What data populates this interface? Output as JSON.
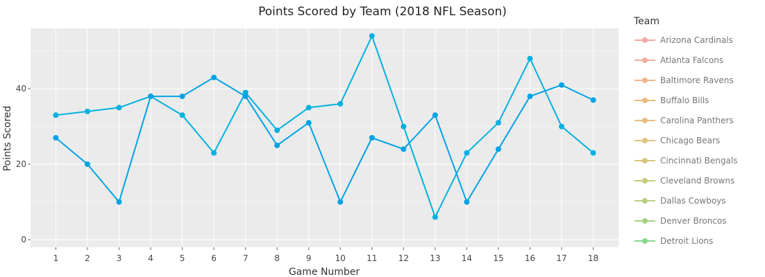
{
  "chart_data": {
    "type": "line",
    "title": "Points Scored by Team (2018 NFL Season)",
    "xlabel": "Game Number",
    "ylabel": "Points Scored",
    "x": [
      1,
      2,
      3,
      4,
      5,
      6,
      7,
      8,
      9,
      10,
      11,
      12,
      13,
      14,
      15,
      16,
      17,
      18
    ],
    "xlim": [
      0.2,
      18.8
    ],
    "ylim": [
      -2,
      56
    ],
    "yticks": [
      0,
      20,
      40
    ],
    "grid": true,
    "legend_title": "Team",
    "legend_position": "right",
    "series": [
      {
        "name": "",
        "color": "#00B0E0",
        "values": [
          33,
          34,
          35,
          38,
          33,
          23,
          39,
          29,
          35,
          36,
          54,
          30,
          6,
          23,
          31,
          48,
          30,
          23
        ]
      },
      {
        "name": "",
        "color": "#00A2E6",
        "values": [
          27,
          20,
          10,
          38,
          38,
          43,
          38,
          25,
          31,
          10,
          27,
          24,
          33,
          10,
          24,
          38,
          41,
          37
        ]
      }
    ],
    "legend": [
      {
        "label": "Arizona Cardinals",
        "color": "#F4A7A3"
      },
      {
        "label": "Atlanta Falcons",
        "color": "#F4AE9B"
      },
      {
        "label": "Baltimore Ravens",
        "color": "#F1B58A"
      },
      {
        "label": "Buffalo Bills",
        "color": "#EDBA7A"
      },
      {
        "label": "Carolina Panthers",
        "color": "#E6BE7A"
      },
      {
        "label": "Chicago Bears",
        "color": "#E0C27E"
      },
      {
        "label": "Cincinnati Bengals",
        "color": "#D8C57A"
      },
      {
        "label": "Cleveland Browns",
        "color": "#C7CB78"
      },
      {
        "label": "Dallas Cowboys",
        "color": "#B9CE7E"
      },
      {
        "label": "Denver Broncos",
        "color": "#A6D27E"
      },
      {
        "label": "Detroit Lions",
        "color": "#86D78A"
      }
    ]
  }
}
